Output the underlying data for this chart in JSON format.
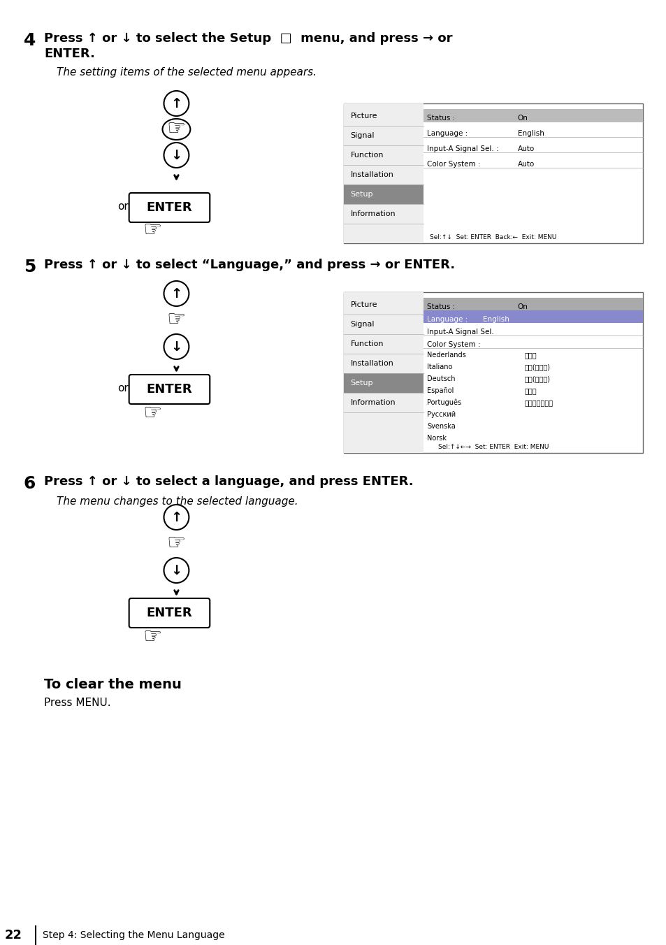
{
  "page_num": "22",
  "page_label": "Step 4: Selecting the Menu Language",
  "bg_color": "#ffffff",
  "text_color": "#000000",
  "step4_num": "4",
  "step4_bold": "Press ↑ or ↓ to select the Setup   menu, and press → or\nENTER.",
  "step4_desc": "The setting items of the selected menu appears.",
  "step5_num": "5",
  "step5_bold": "Press ↑ or ↓ to select “Language,” and press → or ENTER.",
  "step6_num": "6",
  "step6_bold": "Press ↑ or ↓ to select a language, and press ENTER.",
  "step6_desc": "The menu changes to the selected language.",
  "clear_title": "To clear the menu",
  "clear_desc": "Press MENU.",
  "menu1": {
    "items": [
      "Picture",
      "Signal",
      "Function",
      "Installation",
      "Setup",
      "Information"
    ],
    "selected": "Setup",
    "rows": [
      [
        "Status :",
        "On"
      ],
      [
        "Language :",
        "English"
      ],
      [
        "Input-A Signal Sel. :",
        "Auto"
      ],
      [
        "Color System :",
        "Auto"
      ]
    ],
    "selected_row": 0,
    "footer": "Sel:↑↓  Set: ENTER  Back:←  Exit: MENU"
  },
  "menu2": {
    "items": [
      "Picture",
      "Signal",
      "Function",
      "Installation",
      "Setup",
      "Information"
    ],
    "selected": "Setup",
    "rows": [
      [
        "Status :",
        "On"
      ],
      [
        "Language :",
        "English"
      ],
      [
        "Input-A Signal Sel.",
        ""
      ],
      [
        "Color System :",
        ""
      ]
    ],
    "lang_col1": [
      "Nederlands",
      "Italiano",
      "Deutsch",
      "Español",
      "Português",
      "Русский",
      "Svenska",
      "Norsk"
    ],
    "lang_col2": [
      "日本語",
      "中文(简体字)",
      "中文(繁體字)",
      "한국어",
      "ภาษาไทย"
    ],
    "footer": "Sel:↑↓←→  Set: ENTER  Exit: MENU"
  }
}
